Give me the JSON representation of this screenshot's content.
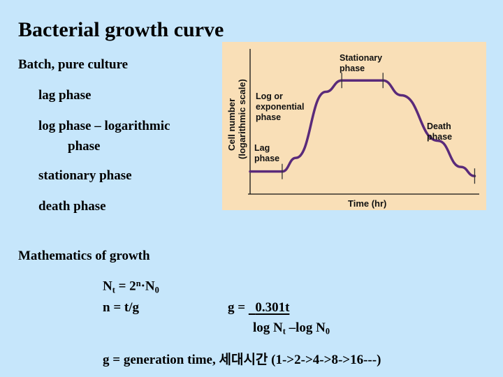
{
  "slide": {
    "title": "Bacterial growth curve",
    "bullets": [
      "Batch, pure culture",
      "lag phase",
      "log phase – logarithmic",
      "phase",
      "stationary phase",
      "death phase"
    ],
    "math_title": "Mathematics of growth",
    "eq_nt": {
      "N": "N",
      "t": "t",
      "eq": " = 2",
      "n": "n",
      "dot": "·N",
      "zero": "0"
    },
    "eq_n": "n = t/g",
    "eq_g_prefix": "g = ",
    "eq_g_numerator": "0.301t",
    "eq_g_denominator": {
      "a": "log N",
      "t": "t",
      "b": " –log N",
      "zero": "0"
    },
    "eq_gen": "g = generation time, 세대시간 (1->2->4->8->16---)"
  },
  "colors": {
    "background": "#c6e6fb",
    "chart_bg": "#f9dfb7",
    "curve": "#5a2a7a"
  },
  "chart_data": {
    "type": "line",
    "xlabel": "Time (hr)",
    "ylabel_line1": "Cell number",
    "ylabel_line2": "(logarithmic scale)",
    "x_ticks": false,
    "y_ticks": false,
    "grid": false,
    "phases": [
      {
        "label_lines": [
          "Lag",
          "phase"
        ]
      },
      {
        "label_lines": [
          "Log or",
          "exponential",
          "phase"
        ]
      },
      {
        "label_lines": [
          "Stationary",
          "phase"
        ]
      },
      {
        "label_lines": [
          "Death",
          "phase"
        ]
      }
    ],
    "curve": [
      {
        "x": 0.0,
        "y": 0.18
      },
      {
        "x": 0.14,
        "y": 0.18
      },
      {
        "x": 0.2,
        "y": 0.3
      },
      {
        "x": 0.33,
        "y": 0.88
      },
      {
        "x": 0.4,
        "y": 0.98
      },
      {
        "x": 0.58,
        "y": 0.98
      },
      {
        "x": 0.66,
        "y": 0.85
      },
      {
        "x": 0.82,
        "y": 0.45
      },
      {
        "x": 0.92,
        "y": 0.22
      },
      {
        "x": 0.98,
        "y": 0.14
      }
    ],
    "boundaries_x": [
      0.14,
      0.4,
      0.58,
      0.98
    ]
  }
}
